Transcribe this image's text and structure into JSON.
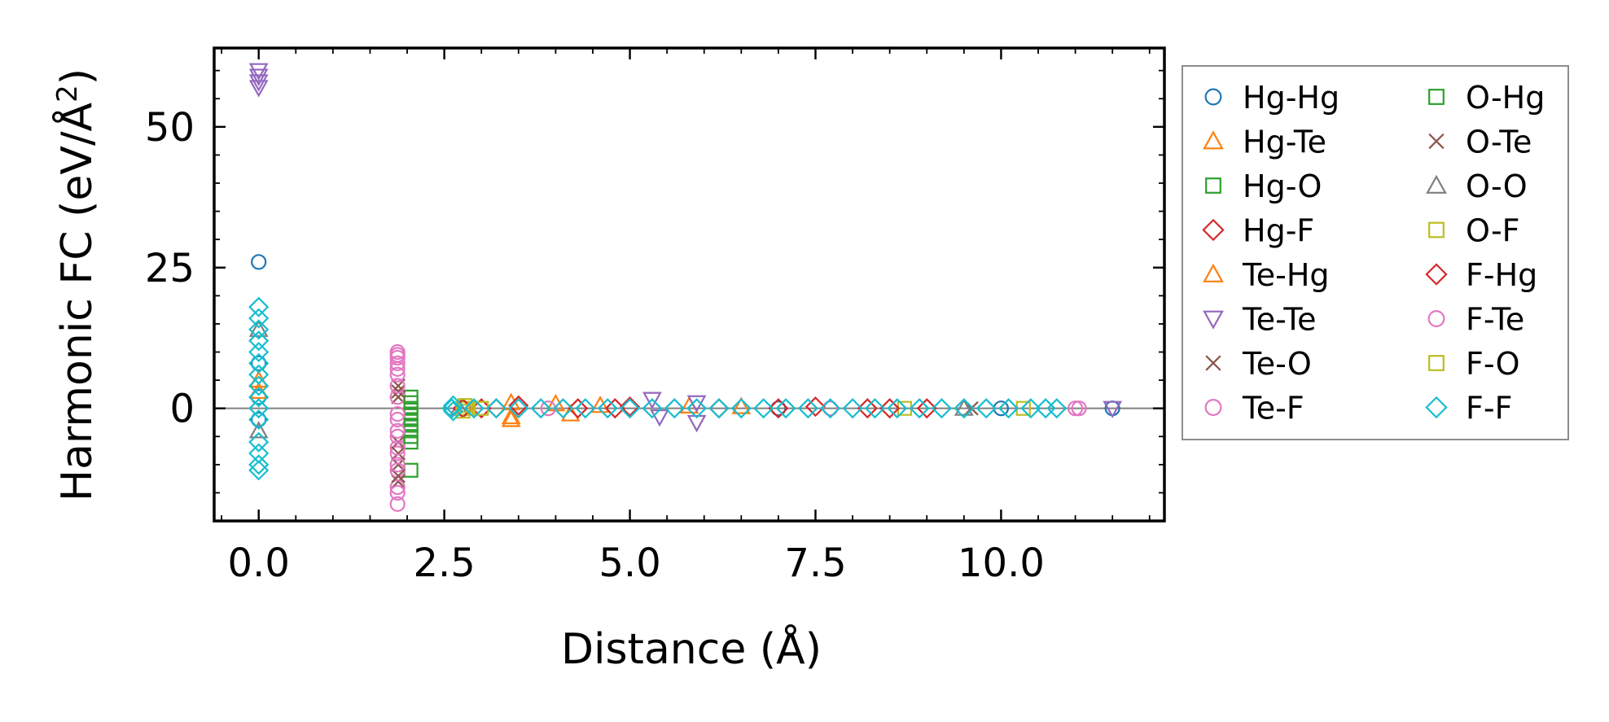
{
  "chart_data": {
    "type": "scatter",
    "title": "",
    "xlabel": "Distance (Å)",
    "ylabel_main": "Harmonic FC (eV/Å",
    "ylabel_sup": "2",
    "ylabel_close": ")",
    "xlim": [
      -0.6,
      12.2
    ],
    "ylim": [
      -20,
      64
    ],
    "xticks": [
      0.0,
      2.5,
      5.0,
      7.5,
      10.0
    ],
    "xtick_labels": [
      "0.0",
      "2.5",
      "5.0",
      "7.5",
      "10.0"
    ],
    "yticks": [
      0,
      25,
      50
    ],
    "ytick_labels": [
      "0",
      "25",
      "50"
    ],
    "x_minor_step": 0.5,
    "y_minor_step": 5,
    "zero_line": true,
    "legend_location": "outside right",
    "series": [
      {
        "name": "Hg-Hg",
        "marker": "circle",
        "color": "#1f77b4",
        "points": [
          [
            0,
            26
          ],
          [
            0,
            8
          ],
          [
            0,
            2
          ],
          [
            0,
            -2
          ],
          [
            11.5,
            0
          ],
          [
            10.0,
            0
          ],
          [
            7.0,
            0
          ]
        ]
      },
      {
        "name": "Hg-Te",
        "marker": "triangle-up",
        "color": "#ff7f0e",
        "points": [
          [
            0,
            3
          ],
          [
            3.4,
            -1.5
          ],
          [
            3.4,
            1.0
          ],
          [
            4.2,
            -1.0
          ],
          [
            4.6,
            0.5
          ],
          [
            6.5,
            0.3
          ]
        ]
      },
      {
        "name": "Hg-O",
        "marker": "square",
        "color": "#2ca02c",
        "points": [
          [
            2.05,
            2
          ],
          [
            2.05,
            0
          ],
          [
            2.05,
            -2
          ],
          [
            2.05,
            -4
          ],
          [
            2.05,
            -6
          ],
          [
            2.05,
            -11
          ]
        ]
      },
      {
        "name": "Hg-F",
        "marker": "diamond",
        "color": "#d62728",
        "points": [
          [
            2.75,
            0
          ],
          [
            3.0,
            0
          ],
          [
            3.5,
            0.5
          ],
          [
            4.3,
            0
          ],
          [
            5.0,
            0.3
          ],
          [
            6.2,
            0
          ],
          [
            7.5,
            0.3
          ],
          [
            8.2,
            0
          ],
          [
            9.0,
            0
          ]
        ]
      },
      {
        "name": "Te-Hg",
        "marker": "triangle-up",
        "color": "#ff7f0e",
        "points": [
          [
            0,
            5
          ],
          [
            3.4,
            -2.0
          ],
          [
            4.0,
            0.8
          ],
          [
            5.8,
            0.4
          ]
        ]
      },
      {
        "name": "Te-Te",
        "marker": "triangle-down",
        "color": "#9467bd",
        "points": [
          [
            0,
            60
          ],
          [
            0,
            59
          ],
          [
            0,
            58
          ],
          [
            0,
            57
          ],
          [
            5.3,
            1.6
          ],
          [
            5.4,
            -1.5
          ],
          [
            5.9,
            -2.5
          ],
          [
            5.9,
            1.0
          ],
          [
            11.5,
            0
          ]
        ]
      },
      {
        "name": "Te-O",
        "marker": "x",
        "color": "#8c564b",
        "points": [
          [
            1.88,
            4
          ],
          [
            1.88,
            2
          ],
          [
            1.88,
            -6
          ],
          [
            1.88,
            -10
          ],
          [
            1.88,
            -13
          ],
          [
            9.6,
            0
          ]
        ]
      },
      {
        "name": "Te-F",
        "marker": "circle",
        "color": "#e377c2",
        "points": [
          [
            1.87,
            10
          ],
          [
            1.87,
            9
          ],
          [
            1.87,
            8
          ],
          [
            1.87,
            6
          ],
          [
            1.87,
            2
          ],
          [
            1.87,
            -2
          ],
          [
            1.87,
            -5
          ],
          [
            1.87,
            -8
          ],
          [
            1.87,
            -11
          ],
          [
            1.87,
            -14
          ],
          [
            1.87,
            -17
          ],
          [
            11.0,
            0
          ],
          [
            3.9,
            0
          ],
          [
            7.7,
            0
          ]
        ]
      },
      {
        "name": "O-Hg",
        "marker": "square",
        "color": "#2ca02c",
        "points": [
          [
            2.05,
            1
          ],
          [
            2.05,
            -1
          ],
          [
            2.05,
            -3
          ],
          [
            2.05,
            -5
          ]
        ]
      },
      {
        "name": "O-Te",
        "marker": "x",
        "color": "#8c564b",
        "points": [
          [
            1.88,
            3
          ],
          [
            1.88,
            -8
          ],
          [
            1.88,
            -12
          ]
        ]
      },
      {
        "name": "O-O",
        "marker": "triangle-up",
        "color": "#7f7f7f",
        "points": [
          [
            0,
            -4
          ],
          [
            0,
            14
          ],
          [
            2.7,
            0
          ],
          [
            9.5,
            0
          ]
        ]
      },
      {
        "name": "O-F",
        "marker": "square",
        "color": "#bcbd22",
        "points": [
          [
            2.75,
            0
          ],
          [
            2.8,
            0
          ],
          [
            8.7,
            0
          ],
          [
            10.3,
            0
          ]
        ]
      },
      {
        "name": "F-Hg",
        "marker": "diamond",
        "color": "#d62728",
        "points": [
          [
            2.75,
            0
          ],
          [
            3.2,
            0
          ],
          [
            4.8,
            0
          ],
          [
            7.0,
            0
          ],
          [
            8.5,
            0
          ]
        ]
      },
      {
        "name": "F-Te",
        "marker": "circle",
        "color": "#e377c2",
        "points": [
          [
            1.87,
            9.5
          ],
          [
            1.87,
            7
          ],
          [
            1.87,
            4
          ],
          [
            1.87,
            -1
          ],
          [
            1.87,
            -4
          ],
          [
            1.87,
            -7
          ],
          [
            1.87,
            -10
          ],
          [
            1.87,
            -15
          ],
          [
            11.05,
            0
          ]
        ]
      },
      {
        "name": "F-O",
        "marker": "square",
        "color": "#bcbd22",
        "points": [
          [
            2.75,
            -0.5
          ],
          [
            2.78,
            0.5
          ],
          [
            3.0,
            0
          ]
        ]
      },
      {
        "name": "F-F",
        "marker": "diamond",
        "color": "#17becf",
        "points": [
          [
            0,
            18
          ],
          [
            0,
            16
          ],
          [
            0,
            14
          ],
          [
            0,
            12
          ],
          [
            0,
            10
          ],
          [
            0,
            8
          ],
          [
            0,
            6
          ],
          [
            0,
            4
          ],
          [
            0,
            2
          ],
          [
            0,
            0
          ],
          [
            0,
            -2
          ],
          [
            0,
            -6
          ],
          [
            0,
            -8
          ],
          [
            0,
            -10
          ],
          [
            0,
            -11
          ],
          [
            2.6,
            0
          ],
          [
            2.62,
            0.5
          ],
          [
            2.62,
            -0.5
          ],
          [
            2.9,
            0
          ],
          [
            3.2,
            0
          ],
          [
            3.5,
            0
          ],
          [
            3.8,
            0
          ],
          [
            4.1,
            0
          ],
          [
            4.4,
            0
          ],
          [
            4.7,
            0
          ],
          [
            5.0,
            0
          ],
          [
            5.3,
            0
          ],
          [
            5.6,
            0
          ],
          [
            5.9,
            0
          ],
          [
            6.2,
            0
          ],
          [
            6.5,
            0
          ],
          [
            6.8,
            0
          ],
          [
            7.1,
            0
          ],
          [
            7.4,
            0
          ],
          [
            7.7,
            0
          ],
          [
            8.0,
            0
          ],
          [
            8.3,
            0
          ],
          [
            8.6,
            0
          ],
          [
            8.9,
            0
          ],
          [
            9.2,
            0
          ],
          [
            9.5,
            0
          ],
          [
            9.8,
            0
          ],
          [
            10.1,
            0
          ],
          [
            10.4,
            0
          ],
          [
            10.6,
            0
          ],
          [
            10.75,
            0
          ]
        ]
      }
    ]
  }
}
